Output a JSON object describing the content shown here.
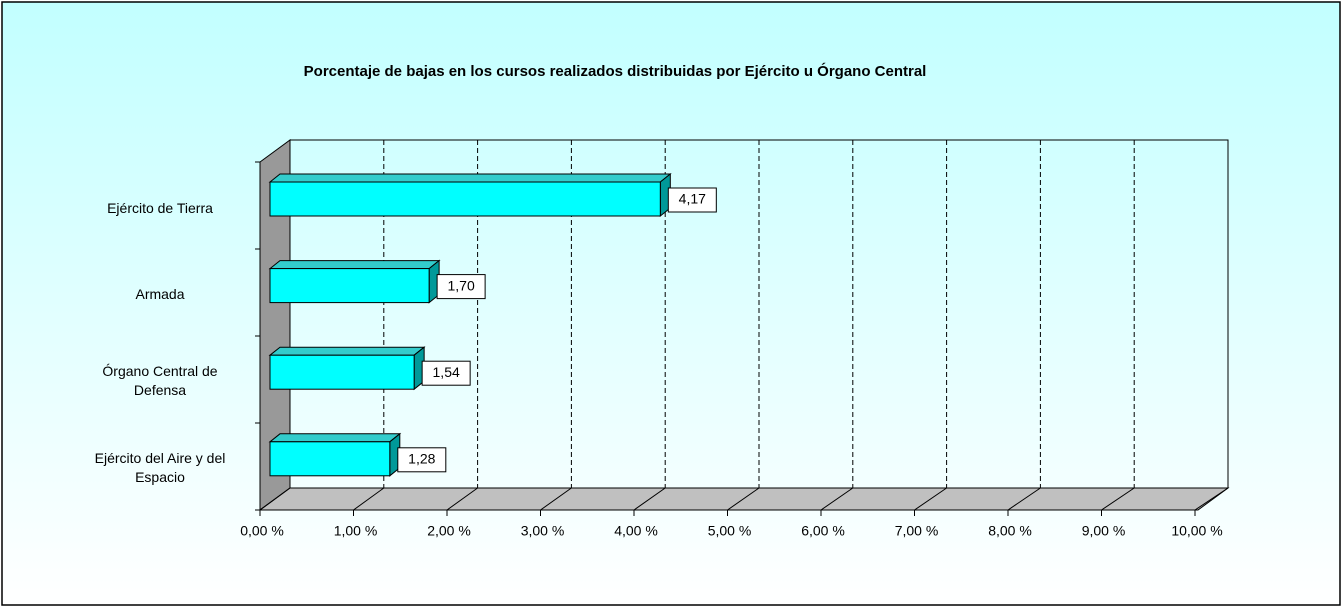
{
  "chart_data": {
    "type": "bar3d_horizontal",
    "title": "Porcentaje de bajas en los cursos realizados distribuidas por Ejército u Órgano Central",
    "categories": [
      "Ejército de Tierra",
      "Armada",
      "Órgano Central de Defensa",
      "Ejército del Aire y del Espacio"
    ],
    "values": [
      4.17,
      1.7,
      1.54,
      1.28
    ],
    "value_labels": [
      "4,17",
      "1,70",
      "1,54",
      "1,28"
    ],
    "color": "#00ffff",
    "xlim": [
      0,
      10
    ],
    "xticks": [
      {
        "value": 0,
        "label": "0,00 %"
      },
      {
        "value": 1,
        "label": "1,00 %"
      },
      {
        "value": 2,
        "label": "2,00 %"
      },
      {
        "value": 3,
        "label": "3,00 %"
      },
      {
        "value": 4,
        "label": "4,00 %"
      },
      {
        "value": 5,
        "label": "5,00 %"
      },
      {
        "value": 6,
        "label": "6,00 %"
      },
      {
        "value": 7,
        "label": "7,00 %"
      },
      {
        "value": 8,
        "label": "8,00 %"
      },
      {
        "value": 9,
        "label": "9,00 %"
      },
      {
        "value": 10,
        "label": "10,00 %"
      }
    ],
    "grid": true
  }
}
